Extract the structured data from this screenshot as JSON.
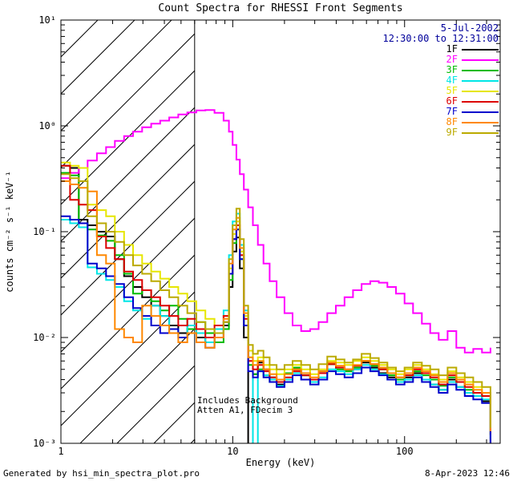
{
  "chart_data": {
    "type": "line",
    "title": "Count Spectra for RHESSI Front Segments",
    "xlabel": "Energy (keV)",
    "ylabel": "counts cm⁻² s⁻¹ keV⁻¹",
    "xscale": "log",
    "yscale": "log",
    "xlim": [
      1,
      360
    ],
    "ylim": [
      0.001,
      10
    ],
    "x_ticks": [
      {
        "v": 1,
        "label": "1"
      },
      {
        "v": 10,
        "label": "10"
      },
      {
        "v": 100,
        "label": "100"
      }
    ],
    "y_ticks": [
      {
        "v": 0.001,
        "label": "10⁻³"
      },
      {
        "v": 0.01,
        "label": "10⁻²"
      },
      {
        "v": 0.1,
        "label": "10⁻¹"
      },
      {
        "v": 1,
        "label": "10⁰"
      },
      {
        "v": 10,
        "label": "10¹"
      }
    ],
    "hatch_region": {
      "from": 1,
      "to": 6
    },
    "vline": 6,
    "legend": {
      "date": "5-Jul-2002",
      "time": "12:30:00 to 12:31:00",
      "header_color": "#00009a",
      "position": "top-right"
    },
    "annotations": [
      "Includes Background",
      "Atten A1, FDecim 3"
    ],
    "footer_left": "Generated by hsi_min_spectra_plot.pro",
    "footer_right": "8-Apr-2023 12:46",
    "x": [
      1.0,
      1.13,
      1.27,
      1.43,
      1.62,
      1.83,
      2.06,
      2.33,
      2.63,
      2.97,
      3.35,
      3.78,
      4.27,
      4.82,
      5.44,
      6.14,
      6.93,
      7.83,
      8.84,
      9.5,
      9.98,
      10.5,
      11.0,
      11.6,
      12.3,
      13.1,
      14.0,
      15.1,
      16.4,
      18.0,
      20.0,
      22.3,
      25.0,
      28.2,
      31.6,
      35.5,
      39.8,
      44.7,
      50.1,
      56.2,
      63.1,
      70.8,
      79.4,
      89.1,
      100,
      112,
      126,
      141,
      158,
      178,
      200,
      224,
      251,
      282,
      316
    ],
    "series": [
      {
        "name": "1F",
        "color": "#000000",
        "y": [
          0.42,
          0.4,
          0.13,
          0.115,
          0.1,
          0.09,
          0.055,
          0.038,
          0.03,
          0.024,
          0.02,
          0.016,
          0.013,
          0.011,
          0.012,
          0.01,
          0.009,
          0.011,
          0.013,
          0.03,
          0.065,
          0.088,
          0.045,
          0.01,
          0.0008,
          0.0045,
          0.0058,
          0.005,
          0.0042,
          0.0036,
          0.004,
          0.005,
          0.0044,
          0.004,
          0.0048,
          0.0056,
          0.0052,
          0.0048,
          0.005,
          0.0058,
          0.0052,
          0.0046,
          0.0042,
          0.0038,
          0.0042,
          0.0046,
          0.004,
          0.0036,
          0.0032,
          0.004,
          0.0034,
          0.003,
          0.0028,
          0.0025,
          0.001
        ]
      },
      {
        "name": "2F",
        "color": "#ff00ff",
        "y": [
          0.32,
          0.36,
          0.4,
          0.47,
          0.55,
          0.63,
          0.72,
          0.8,
          0.88,
          0.97,
          1.05,
          1.12,
          1.2,
          1.28,
          1.34,
          1.4,
          1.41,
          1.33,
          1.12,
          0.88,
          0.66,
          0.48,
          0.35,
          0.25,
          0.17,
          0.115,
          0.075,
          0.05,
          0.034,
          0.024,
          0.017,
          0.013,
          0.0115,
          0.012,
          0.014,
          0.017,
          0.02,
          0.024,
          0.028,
          0.032,
          0.034,
          0.033,
          0.03,
          0.026,
          0.021,
          0.017,
          0.0135,
          0.011,
          0.0095,
          0.0115,
          0.008,
          0.0072,
          0.0078,
          0.0072,
          0.008
        ]
      },
      {
        "name": "3F",
        "color": "#00bb00",
        "y": [
          0.36,
          0.34,
          0.12,
          0.105,
          0.092,
          0.082,
          0.06,
          0.04,
          0.026,
          0.028,
          0.022,
          0.018,
          0.02,
          0.015,
          0.012,
          0.014,
          0.011,
          0.009,
          0.012,
          0.035,
          0.078,
          0.105,
          0.055,
          0.013,
          0.0055,
          0.0045,
          0.005,
          0.0044,
          0.0038,
          0.004,
          0.0046,
          0.0052,
          0.0044,
          0.0038,
          0.0046,
          0.0056,
          0.005,
          0.0048,
          0.0052,
          0.006,
          0.0054,
          0.005,
          0.0044,
          0.004,
          0.0044,
          0.0048,
          0.0044,
          0.004,
          0.0035,
          0.0042,
          0.0038,
          0.0032,
          0.003,
          0.0028,
          0.0012
        ]
      },
      {
        "name": "4F",
        "color": "#00e6e6",
        "y": [
          0.13,
          0.12,
          0.11,
          0.046,
          0.04,
          0.035,
          0.03,
          0.022,
          0.018,
          0.015,
          0.02,
          0.016,
          0.012,
          0.01,
          0.013,
          0.011,
          0.009,
          0.012,
          0.018,
          0.06,
          0.125,
          0.148,
          0.075,
          0.018,
          0.0065,
          0.0008,
          0.0048,
          0.0044,
          0.004,
          0.0035,
          0.004,
          0.0046,
          0.004,
          0.0038,
          0.0042,
          0.005,
          0.0048,
          0.0045,
          0.005,
          0.0055,
          0.005,
          0.0045,
          0.004,
          0.0038,
          0.004,
          0.0044,
          0.004,
          0.0036,
          0.0032,
          0.0038,
          0.0034,
          0.003,
          0.0028,
          0.0026,
          0.0011
        ]
      },
      {
        "name": "5F",
        "color": "#e6e600",
        "y": [
          0.45,
          0.42,
          0.4,
          0.18,
          0.16,
          0.14,
          0.1,
          0.075,
          0.06,
          0.05,
          0.042,
          0.036,
          0.03,
          0.026,
          0.022,
          0.018,
          0.015,
          0.013,
          0.016,
          0.045,
          0.095,
          0.125,
          0.065,
          0.016,
          0.0075,
          0.006,
          0.0065,
          0.0055,
          0.005,
          0.0045,
          0.005,
          0.0055,
          0.005,
          0.0045,
          0.005,
          0.006,
          0.0058,
          0.0055,
          0.006,
          0.0065,
          0.006,
          0.0055,
          0.005,
          0.0045,
          0.005,
          0.0055,
          0.005,
          0.0045,
          0.004,
          0.0048,
          0.0042,
          0.0038,
          0.0034,
          0.003,
          0.0013
        ]
      },
      {
        "name": "6F",
        "color": "#dd0000",
        "y": [
          0.42,
          0.2,
          0.18,
          0.16,
          0.09,
          0.07,
          0.055,
          0.042,
          0.035,
          0.028,
          0.024,
          0.02,
          0.016,
          0.013,
          0.015,
          0.012,
          0.01,
          0.013,
          0.016,
          0.04,
          0.085,
          0.115,
          0.06,
          0.015,
          0.006,
          0.005,
          0.0055,
          0.0048,
          0.0042,
          0.0038,
          0.0042,
          0.0048,
          0.0044,
          0.004,
          0.0046,
          0.0056,
          0.0052,
          0.005,
          0.0054,
          0.006,
          0.0056,
          0.005,
          0.0046,
          0.0042,
          0.0044,
          0.005,
          0.0046,
          0.0042,
          0.0036,
          0.0044,
          0.0038,
          0.0034,
          0.003,
          0.0028,
          0.0012
        ]
      },
      {
        "name": "7F",
        "color": "#0000cc",
        "y": [
          0.14,
          0.13,
          0.12,
          0.05,
          0.045,
          0.038,
          0.032,
          0.024,
          0.019,
          0.016,
          0.013,
          0.011,
          0.012,
          0.01,
          0.011,
          0.009,
          0.008,
          0.01,
          0.014,
          0.04,
          0.085,
          0.105,
          0.055,
          0.013,
          0.0048,
          0.0042,
          0.0048,
          0.0042,
          0.0038,
          0.0034,
          0.0038,
          0.0044,
          0.004,
          0.0036,
          0.004,
          0.0048,
          0.0045,
          0.0042,
          0.0046,
          0.0052,
          0.0048,
          0.0044,
          0.004,
          0.0036,
          0.0038,
          0.0042,
          0.0038,
          0.0034,
          0.003,
          0.0036,
          0.0032,
          0.0028,
          0.0026,
          0.0024,
          0.001
        ]
      },
      {
        "name": "8F",
        "color": "#ff8800",
        "y": [
          0.3,
          0.28,
          0.26,
          0.24,
          0.06,
          0.05,
          0.012,
          0.01,
          0.009,
          0.02,
          0.016,
          0.013,
          0.011,
          0.009,
          0.011,
          0.009,
          0.008,
          0.01,
          0.015,
          0.05,
          0.105,
          0.135,
          0.07,
          0.017,
          0.0065,
          0.0055,
          0.006,
          0.005,
          0.0045,
          0.004,
          0.0045,
          0.005,
          0.0046,
          0.0042,
          0.0048,
          0.0058,
          0.0054,
          0.005,
          0.0055,
          0.006,
          0.0056,
          0.0052,
          0.0046,
          0.0042,
          0.0046,
          0.0052,
          0.0048,
          0.0044,
          0.0038,
          0.0046,
          0.004,
          0.0036,
          0.0032,
          0.003,
          0.0013
        ]
      },
      {
        "name": "9F",
        "color": "#bbaa00",
        "y": [
          0.35,
          0.32,
          0.3,
          0.14,
          0.12,
          0.1,
          0.08,
          0.06,
          0.048,
          0.04,
          0.034,
          0.028,
          0.024,
          0.02,
          0.017,
          0.014,
          0.012,
          0.011,
          0.014,
          0.055,
          0.115,
          0.165,
          0.085,
          0.02,
          0.0085,
          0.007,
          0.0075,
          0.0065,
          0.0055,
          0.005,
          0.0055,
          0.006,
          0.0055,
          0.005,
          0.0056,
          0.0066,
          0.0062,
          0.0058,
          0.0062,
          0.007,
          0.0064,
          0.0058,
          0.0052,
          0.0048,
          0.0052,
          0.0058,
          0.0054,
          0.005,
          0.0044,
          0.0052,
          0.0046,
          0.0042,
          0.0038,
          0.0034,
          0.0014
        ]
      }
    ]
  }
}
